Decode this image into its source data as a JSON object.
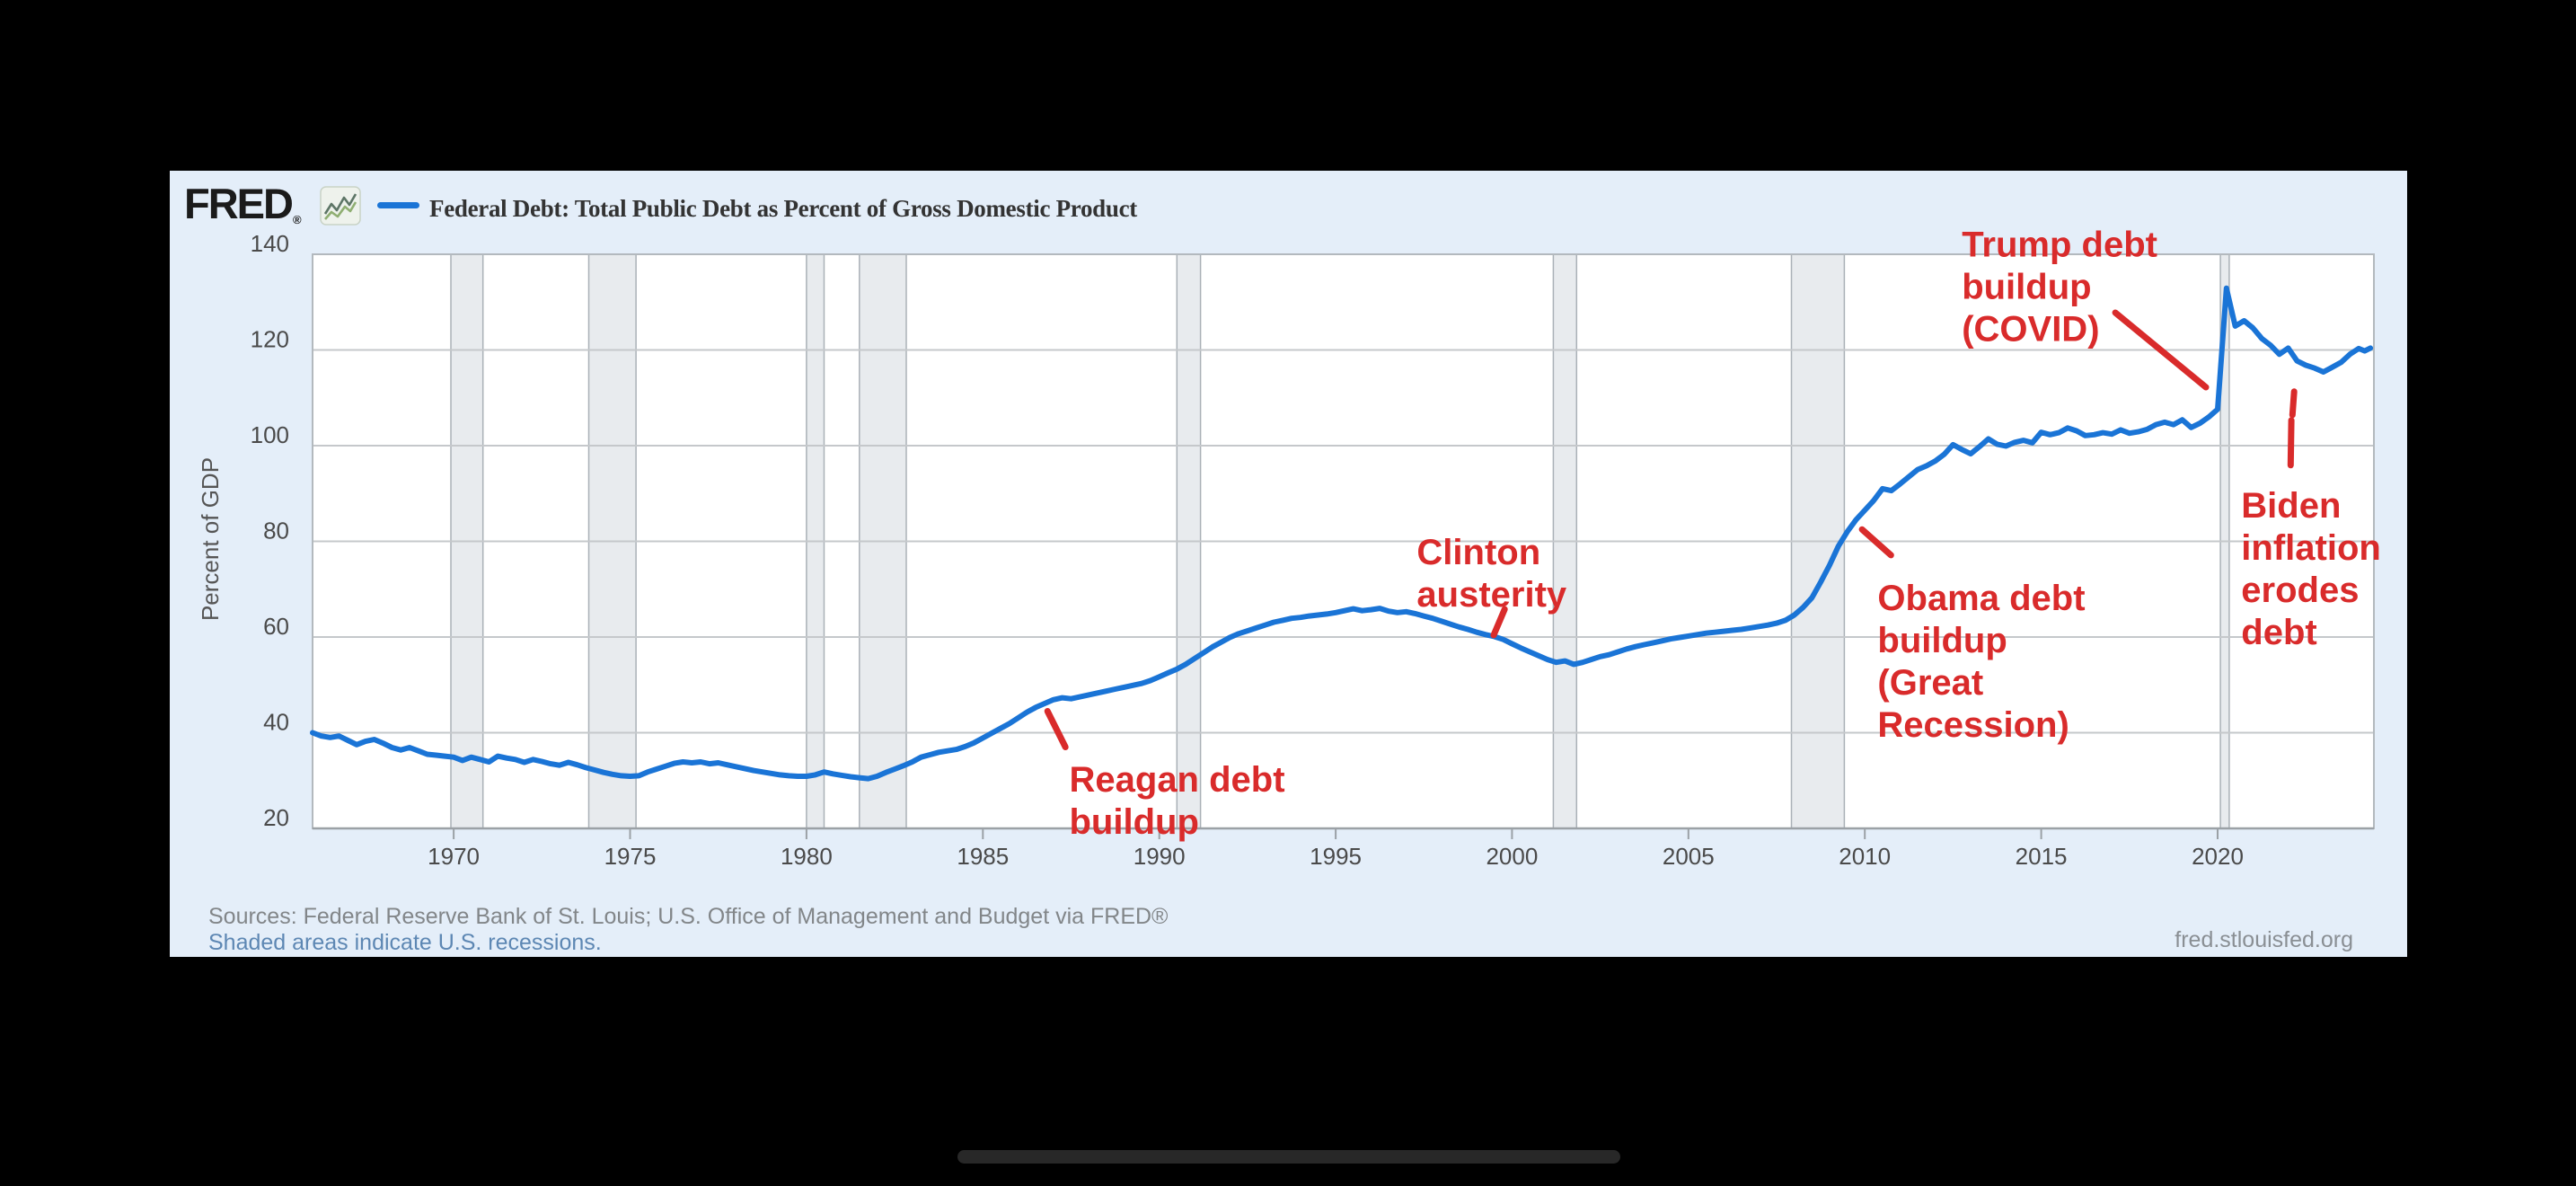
{
  "window": {
    "background": "#000000"
  },
  "card": {
    "background": "#e4eef9"
  },
  "header": {
    "brand": "FRED",
    "brand_reg_mark": "®",
    "sparkline_icon": "green-sparkline-icon",
    "legend_color": "#1a74d6",
    "title": "Federal Debt: Total Public Debt as Percent of Gross Domestic Product"
  },
  "footer": {
    "sources": "Sources: Federal Reserve Bank of St. Louis; U.S. Office of Management and Budget via FRED®",
    "recession_note": "Shaded areas indicate U.S. recessions.",
    "watermark": "fred.stlouisfed.org"
  },
  "dock": {
    "pill": true
  },
  "chart_data": {
    "type": "line",
    "title": "Federal Debt: Total Public Debt as Percent of Gross Domestic Product",
    "xlabel": "",
    "ylabel": "Percent of GDP",
    "xlim": [
      1966,
      2024.43
    ],
    "ylim": [
      20,
      140
    ],
    "x_ticks": [
      1970,
      1975,
      1980,
      1985,
      1990,
      1995,
      2000,
      2005,
      2010,
      2015,
      2020
    ],
    "y_ticks": [
      20,
      40,
      60,
      80,
      100,
      120,
      140
    ],
    "grid": true,
    "legend_position": "top",
    "line_color": "#1a74d6",
    "line_width": 6,
    "grid_color": "#c5c8cb",
    "border_color": "#b3b9be",
    "axis_color": "#9ba1a6",
    "tick_label_color": "#4a4a4a",
    "plot_background": "#ffffff",
    "recession_band_fill": "#e8ebee",
    "recession_band_edge": "#aab1b7",
    "recession_bands": [
      [
        1969.92,
        1970.83
      ],
      [
        1973.83,
        1975.17
      ],
      [
        1980.0,
        1980.5
      ],
      [
        1981.5,
        1982.83
      ],
      [
        1990.5,
        1991.17
      ],
      [
        2001.17,
        2001.83
      ],
      [
        2007.92,
        2009.42
      ],
      [
        2020.08,
        2020.33
      ]
    ],
    "annotation_color": "#d92b2b",
    "annotations": [
      {
        "id": "reagan",
        "lines": [
          "Reagan debt",
          "buildup"
        ],
        "text_pos": [
          1987.45,
          34.5
        ],
        "leaders": [
          [
            [
              1986.83,
              44.5
            ],
            [
              1987.34,
              37.0
            ]
          ]
        ]
      },
      {
        "id": "clinton",
        "lines": [
          "Clinton",
          "austerity"
        ],
        "text_pos": [
          1997.3,
          82.0
        ],
        "leaders": [
          [
            [
              1999.79,
              65.8
            ],
            [
              1999.48,
              60.4
            ]
          ]
        ]
      },
      {
        "id": "obama",
        "lines": [
          "Obama debt",
          "buildup",
          "(Great",
          "Recession)"
        ],
        "text_pos": [
          2010.36,
          72.4
        ],
        "leaders": [
          [
            [
              2009.92,
              82.5
            ],
            [
              2010.74,
              77.1
            ]
          ]
        ]
      },
      {
        "id": "trump",
        "lines": [
          "Trump debt",
          "buildup",
          "(COVID)"
        ],
        "text_pos": [
          2012.75,
          146.3
        ],
        "leaders": [
          [
            [
              2017.1,
              127.8
            ],
            [
              2019.67,
              112.2
            ]
          ]
        ]
      },
      {
        "id": "biden",
        "lines": [
          "Biden",
          "inflation",
          "erodes",
          "debt"
        ],
        "text_pos": [
          2020.67,
          91.7
        ],
        "leaders": [
          [
            [
              2022.17,
              111.3
            ],
            [
              2022.12,
              106.4
            ]
          ],
          [
            [
              2022.09,
              105.3
            ],
            [
              2022.07,
              95.9
            ]
          ]
        ]
      }
    ],
    "series": [
      {
        "name": "Federal Debt: Total Public Debt as Percent of Gross Domestic Product",
        "points": [
          [
            1966,
            40.0
          ],
          [
            1966.25,
            39.3
          ],
          [
            1966.5,
            39.0
          ],
          [
            1966.75,
            39.3
          ],
          [
            1967,
            38.4
          ],
          [
            1967.25,
            37.5
          ],
          [
            1967.5,
            38.2
          ],
          [
            1967.75,
            38.6
          ],
          [
            1968,
            37.8
          ],
          [
            1968.25,
            36.9
          ],
          [
            1968.5,
            36.4
          ],
          [
            1968.75,
            36.9
          ],
          [
            1969,
            36.2
          ],
          [
            1969.25,
            35.5
          ],
          [
            1969.5,
            35.3
          ],
          [
            1969.75,
            35.1
          ],
          [
            1970,
            34.9
          ],
          [
            1970.25,
            34.2
          ],
          [
            1970.5,
            34.9
          ],
          [
            1970.75,
            34.4
          ],
          [
            1971,
            33.9
          ],
          [
            1971.25,
            35.1
          ],
          [
            1971.5,
            34.7
          ],
          [
            1971.75,
            34.4
          ],
          [
            1972,
            33.8
          ],
          [
            1972.25,
            34.4
          ],
          [
            1972.5,
            34.0
          ],
          [
            1972.75,
            33.5
          ],
          [
            1973,
            33.2
          ],
          [
            1973.25,
            33.8
          ],
          [
            1973.5,
            33.3
          ],
          [
            1973.75,
            32.7
          ],
          [
            1974,
            32.2
          ],
          [
            1974.25,
            31.7
          ],
          [
            1974.5,
            31.3
          ],
          [
            1974.75,
            31.0
          ],
          [
            1975,
            30.9
          ],
          [
            1975.25,
            31.0
          ],
          [
            1975.5,
            31.8
          ],
          [
            1975.75,
            32.4
          ],
          [
            1976,
            33.0
          ],
          [
            1976.25,
            33.6
          ],
          [
            1976.5,
            33.9
          ],
          [
            1976.75,
            33.7
          ],
          [
            1977,
            33.9
          ],
          [
            1977.25,
            33.5
          ],
          [
            1977.5,
            33.7
          ],
          [
            1977.75,
            33.3
          ],
          [
            1978,
            32.9
          ],
          [
            1978.25,
            32.5
          ],
          [
            1978.5,
            32.1
          ],
          [
            1978.75,
            31.8
          ],
          [
            1979,
            31.5
          ],
          [
            1979.25,
            31.2
          ],
          [
            1979.5,
            31.0
          ],
          [
            1979.75,
            30.9
          ],
          [
            1980,
            30.9
          ],
          [
            1980.25,
            31.2
          ],
          [
            1980.5,
            31.8
          ],
          [
            1980.75,
            31.4
          ],
          [
            1981,
            31.1
          ],
          [
            1981.25,
            30.8
          ],
          [
            1981.5,
            30.6
          ],
          [
            1981.75,
            30.4
          ],
          [
            1982,
            30.9
          ],
          [
            1982.25,
            31.7
          ],
          [
            1982.5,
            32.4
          ],
          [
            1982.75,
            33.1
          ],
          [
            1983,
            33.9
          ],
          [
            1983.25,
            34.9
          ],
          [
            1983.5,
            35.4
          ],
          [
            1983.75,
            35.9
          ],
          [
            1984,
            36.2
          ],
          [
            1984.25,
            36.5
          ],
          [
            1984.5,
            37.1
          ],
          [
            1984.75,
            37.9
          ],
          [
            1985,
            38.9
          ],
          [
            1985.25,
            39.9
          ],
          [
            1985.5,
            40.9
          ],
          [
            1985.75,
            41.9
          ],
          [
            1986,
            43.1
          ],
          [
            1986.25,
            44.3
          ],
          [
            1986.5,
            45.3
          ],
          [
            1986.75,
            46.1
          ],
          [
            1987,
            46.9
          ],
          [
            1987.25,
            47.3
          ],
          [
            1987.5,
            47.1
          ],
          [
            1987.75,
            47.5
          ],
          [
            1988,
            47.9
          ],
          [
            1988.25,
            48.3
          ],
          [
            1988.5,
            48.7
          ],
          [
            1988.75,
            49.1
          ],
          [
            1989,
            49.5
          ],
          [
            1989.25,
            49.9
          ],
          [
            1989.5,
            50.3
          ],
          [
            1989.75,
            50.9
          ],
          [
            1990,
            51.7
          ],
          [
            1990.25,
            52.5
          ],
          [
            1990.5,
            53.3
          ],
          [
            1990.75,
            54.3
          ],
          [
            1991,
            55.5
          ],
          [
            1991.25,
            56.7
          ],
          [
            1991.5,
            57.9
          ],
          [
            1991.75,
            58.9
          ],
          [
            1992,
            59.9
          ],
          [
            1992.25,
            60.7
          ],
          [
            1992.5,
            61.3
          ],
          [
            1992.75,
            61.9
          ],
          [
            1993,
            62.5
          ],
          [
            1993.25,
            63.1
          ],
          [
            1993.5,
            63.5
          ],
          [
            1993.75,
            63.9
          ],
          [
            1994,
            64.1
          ],
          [
            1994.25,
            64.4
          ],
          [
            1994.5,
            64.6
          ],
          [
            1994.75,
            64.8
          ],
          [
            1995,
            65.1
          ],
          [
            1995.25,
            65.5
          ],
          [
            1995.5,
            65.9
          ],
          [
            1995.75,
            65.5
          ],
          [
            1996,
            65.7
          ],
          [
            1996.25,
            66.0
          ],
          [
            1996.5,
            65.4
          ],
          [
            1996.75,
            65.1
          ],
          [
            1997,
            65.3
          ],
          [
            1997.25,
            64.9
          ],
          [
            1997.5,
            64.4
          ],
          [
            1997.75,
            63.9
          ],
          [
            1998,
            63.3
          ],
          [
            1998.25,
            62.7
          ],
          [
            1998.5,
            62.1
          ],
          [
            1998.75,
            61.6
          ],
          [
            1999,
            61.0
          ],
          [
            1999.25,
            60.5
          ],
          [
            1999.5,
            60.1
          ],
          [
            1999.75,
            59.5
          ],
          [
            2000,
            58.6
          ],
          [
            2000.25,
            57.7
          ],
          [
            2000.5,
            56.9
          ],
          [
            2000.75,
            56.1
          ],
          [
            2001,
            55.3
          ],
          [
            2001.25,
            54.7
          ],
          [
            2001.5,
            55.0
          ],
          [
            2001.75,
            54.3
          ],
          [
            2002,
            54.7
          ],
          [
            2002.25,
            55.3
          ],
          [
            2002.5,
            55.9
          ],
          [
            2002.75,
            56.3
          ],
          [
            2003,
            56.9
          ],
          [
            2003.25,
            57.5
          ],
          [
            2003.5,
            58.0
          ],
          [
            2003.75,
            58.4
          ],
          [
            2004,
            58.8
          ],
          [
            2004.25,
            59.2
          ],
          [
            2004.5,
            59.6
          ],
          [
            2004.75,
            59.9
          ],
          [
            2005,
            60.2
          ],
          [
            2005.25,
            60.5
          ],
          [
            2005.5,
            60.8
          ],
          [
            2005.75,
            61.0
          ],
          [
            2006,
            61.2
          ],
          [
            2006.25,
            61.4
          ],
          [
            2006.5,
            61.6
          ],
          [
            2006.75,
            61.9
          ],
          [
            2007,
            62.2
          ],
          [
            2007.25,
            62.5
          ],
          [
            2007.5,
            62.9
          ],
          [
            2007.75,
            63.5
          ],
          [
            2008,
            64.6
          ],
          [
            2008.25,
            66.2
          ],
          [
            2008.5,
            68.2
          ],
          [
            2008.75,
            71.5
          ],
          [
            2009,
            75.0
          ],
          [
            2009.25,
            79.0
          ],
          [
            2009.5,
            82.0
          ],
          [
            2009.75,
            84.5
          ],
          [
            2010,
            86.5
          ],
          [
            2010.25,
            88.5
          ],
          [
            2010.5,
            91.0
          ],
          [
            2010.75,
            90.6
          ],
          [
            2011,
            92.0
          ],
          [
            2011.25,
            93.5
          ],
          [
            2011.5,
            95.0
          ],
          [
            2011.75,
            95.8
          ],
          [
            2012,
            96.8
          ],
          [
            2012.25,
            98.2
          ],
          [
            2012.5,
            100.2
          ],
          [
            2012.75,
            99.2
          ],
          [
            2013,
            98.3
          ],
          [
            2013.25,
            99.8
          ],
          [
            2013.5,
            101.4
          ],
          [
            2013.75,
            100.3
          ],
          [
            2014,
            99.9
          ],
          [
            2014.25,
            100.7
          ],
          [
            2014.5,
            101.1
          ],
          [
            2014.75,
            100.6
          ],
          [
            2015,
            102.8
          ],
          [
            2015.25,
            102.3
          ],
          [
            2015.5,
            102.7
          ],
          [
            2015.75,
            103.7
          ],
          [
            2016,
            103.1
          ],
          [
            2016.25,
            102.1
          ],
          [
            2016.5,
            102.3
          ],
          [
            2016.75,
            102.7
          ],
          [
            2017,
            102.4
          ],
          [
            2017.25,
            103.3
          ],
          [
            2017.5,
            102.6
          ],
          [
            2017.75,
            102.9
          ],
          [
            2018,
            103.4
          ],
          [
            2018.25,
            104.4
          ],
          [
            2018.5,
            104.9
          ],
          [
            2018.75,
            104.4
          ],
          [
            2019,
            105.4
          ],
          [
            2019.25,
            103.8
          ],
          [
            2019.5,
            104.7
          ],
          [
            2019.75,
            106.0
          ],
          [
            2020,
            107.6
          ],
          [
            2020.25,
            132.9
          ],
          [
            2020.5,
            125.0
          ],
          [
            2020.75,
            126.1
          ],
          [
            2021,
            124.6
          ],
          [
            2021.25,
            122.4
          ],
          [
            2021.5,
            121.0
          ],
          [
            2021.75,
            119.1
          ],
          [
            2022,
            120.4
          ],
          [
            2022.25,
            117.7
          ],
          [
            2022.5,
            116.8
          ],
          [
            2022.75,
            116.2
          ],
          [
            2023,
            115.4
          ],
          [
            2023.25,
            116.4
          ],
          [
            2023.5,
            117.4
          ],
          [
            2023.75,
            119.1
          ],
          [
            2024,
            120.3
          ],
          [
            2024.17,
            119.8
          ],
          [
            2024.33,
            120.4
          ]
        ]
      }
    ]
  }
}
